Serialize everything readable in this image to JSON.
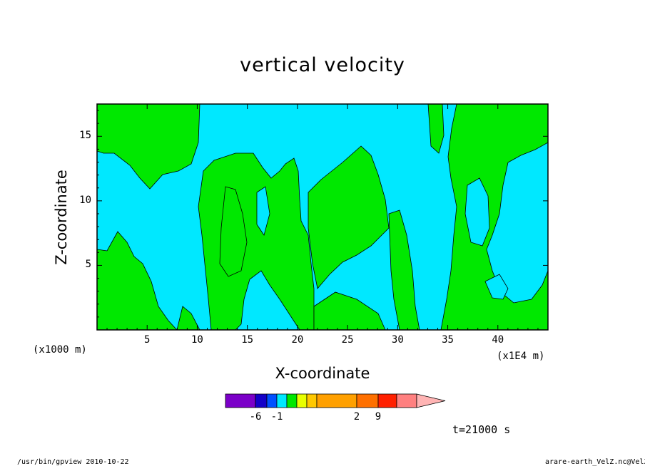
{
  "chart_data": {
    "type": "heatmap",
    "title": "vertical velocity",
    "xlabel": "X-coordinate",
    "ylabel": "Z-coordinate",
    "x_unit": "(x1000 m)",
    "x_scale_note": "(x1E4 m)",
    "xlim": [
      0,
      45
    ],
    "ylim": [
      0,
      17.5
    ],
    "x_ticks": [
      5,
      10,
      15,
      20,
      25,
      30,
      35,
      40
    ],
    "y_ticks": [
      5,
      10,
      15
    ],
    "time_label": "t=21000 s",
    "colorbar": {
      "labels": [
        {
          "value": -6,
          "text": "-6"
        },
        {
          "value": -1,
          "text": "-1"
        },
        {
          "value": 2,
          "text": "2"
        },
        {
          "value": 9,
          "text": "9"
        }
      ],
      "colors": [
        "#7b00c8",
        "#1400c8",
        "#0050ff",
        "#00e8ff",
        "#00e800",
        "#e8ff00",
        "#ffc800",
        "#ffa000",
        "#ff7000",
        "#ff2000",
        "#ff8080",
        "#ffb4b4"
      ]
    },
    "fill_colors": {
      "negative": "#00e8ff",
      "positive": "#00e800"
    },
    "regions_description": "mixed cyan (weak downward) and green (weak upward) regions across the domain"
  },
  "footer": {
    "left": "/usr/bin/gpview  2010-10-22",
    "right": "arare-earth_VelZ.nc@VelZ"
  }
}
